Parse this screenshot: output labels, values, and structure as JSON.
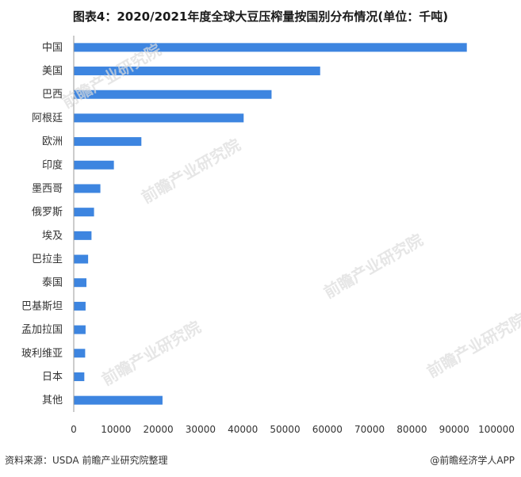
{
  "title": "图表4：2020/2021年度全球大豆压榨量按国别分布情况(单位：千吨)",
  "source": "资料来源：USDA 前瞻产业研究院整理",
  "brand": "@前瞻经济学人APP",
  "watermark": "前瞻产业研究院",
  "colors": {
    "bar": "#3d85e0",
    "axis": "#999999"
  },
  "chart_data": {
    "type": "bar",
    "orientation": "horizontal",
    "categories": [
      "中国",
      "美国",
      "巴西",
      "阿根廷",
      "欧洲",
      "印度",
      "墨西哥",
      "俄罗斯",
      "埃及",
      "巴拉圭",
      "泰国",
      "巴基斯坦",
      "孟加拉国",
      "玻利维亚",
      "日本",
      "其他"
    ],
    "values": [
      93000,
      58300,
      46800,
      40200,
      16000,
      9500,
      6300,
      4800,
      4200,
      3400,
      3000,
      2800,
      2800,
      2700,
      2500,
      21000
    ],
    "xlim": [
      0,
      100000
    ],
    "xticks": [
      "0",
      "10000",
      "20000",
      "30000",
      "40000",
      "50000",
      "60000",
      "70000",
      "80000",
      "90000",
      "100000"
    ],
    "title": "图表4：2020/2021年度全球大豆压榨量按国别分布情况(单位：千吨)",
    "grid": false
  }
}
